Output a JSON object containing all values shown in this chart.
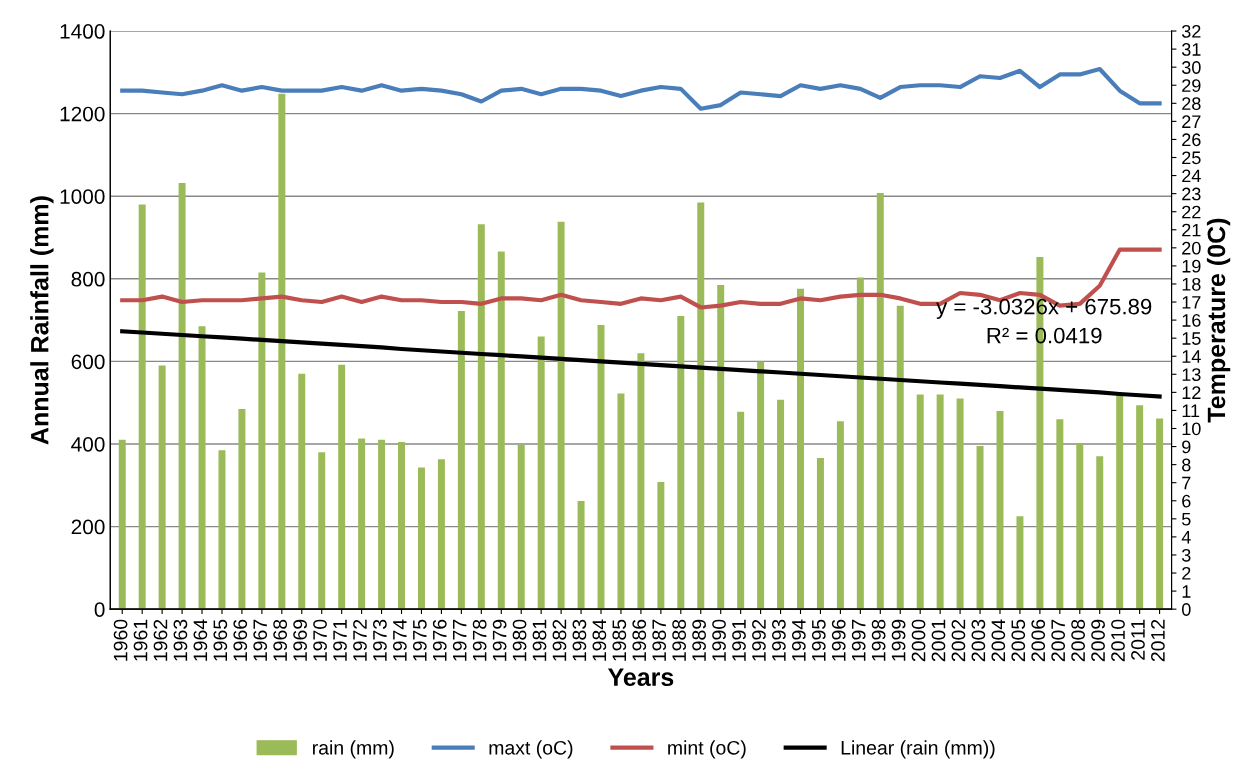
{
  "chart_data": {
    "type": "bar",
    "xlabel": "Years",
    "ylabel": "Annual Rainfall (mm)",
    "y2label": "Temperature (0C)",
    "categories": [
      "1960",
      "1961",
      "1962",
      "1963",
      "1964",
      "1965",
      "1966",
      "1967",
      "1968",
      "1969",
      "1970",
      "1971",
      "1972",
      "1973",
      "1974",
      "1975",
      "1976",
      "1977",
      "1978",
      "1979",
      "1980",
      "1981",
      "1982",
      "1983",
      "1984",
      "1985",
      "1986",
      "1987",
      "1988",
      "1989",
      "1990",
      "1991",
      "1992",
      "1993",
      "1994",
      "1995",
      "1996",
      "1997",
      "1998",
      "1999",
      "2000",
      "2001",
      "2002",
      "2003",
      "2004",
      "2005",
      "2006",
      "2007",
      "2008",
      "2009",
      "2010",
      "2011",
      "2012"
    ],
    "series": [
      {
        "name": "rain (mm)",
        "color": "#9bbb59",
        "values": [
          410,
          980,
          590,
          1032,
          685,
          385,
          485,
          815,
          1248,
          570,
          380,
          592,
          413,
          410,
          405,
          343,
          363,
          722,
          932,
          866,
          398,
          660,
          938,
          262,
          688,
          522,
          620,
          308,
          710,
          985,
          785,
          478,
          600,
          507,
          776,
          366,
          455,
          803,
          1008,
          735,
          520,
          520,
          510,
          395,
          480,
          225,
          853,
          460,
          402,
          370,
          520,
          494,
          462
        ]
      },
      {
        "name": "maxt (oC)",
        "type": "line",
        "axis": "y2",
        "color": "#4a7ebb",
        "values": [
          28.7,
          28.7,
          28.6,
          28.5,
          28.7,
          29.0,
          28.7,
          28.9,
          28.7,
          28.7,
          28.7,
          28.9,
          28.7,
          29.0,
          28.7,
          28.8,
          28.7,
          28.5,
          28.1,
          28.7,
          28.8,
          28.5,
          28.8,
          28.8,
          28.7,
          28.4,
          28.7,
          28.9,
          28.8,
          27.7,
          27.9,
          28.6,
          28.5,
          28.4,
          29.0,
          28.8,
          29.0,
          28.8,
          28.3,
          28.9,
          29.0,
          29.0,
          28.9,
          29.5,
          29.4,
          29.8,
          28.9,
          29.6,
          29.6,
          29.9,
          28.7,
          28.0,
          28.0
        ]
      },
      {
        "name": "mint (oC)",
        "type": "line",
        "axis": "y2",
        "color": "#c0504d",
        "values": [
          17.1,
          17.1,
          17.3,
          17.0,
          17.1,
          17.1,
          17.1,
          17.2,
          17.3,
          17.1,
          17.0,
          17.3,
          17.0,
          17.3,
          17.1,
          17.1,
          17.0,
          17.0,
          16.9,
          17.2,
          17.2,
          17.1,
          17.4,
          17.1,
          17.0,
          16.9,
          17.2,
          17.1,
          17.3,
          16.7,
          16.8,
          17.0,
          16.9,
          16.9,
          17.2,
          17.1,
          17.3,
          17.4,
          17.4,
          17.2,
          16.9,
          16.9,
          17.5,
          17.4,
          17.1,
          17.5,
          17.4,
          16.8,
          16.9,
          17.9,
          19.9,
          19.9,
          19.9
        ]
      },
      {
        "name": "Linear (rain (mm))",
        "type": "line",
        "color": "#000000",
        "values": [
          673,
          670,
          667,
          664,
          661,
          658,
          655,
          652,
          649,
          646,
          643,
          640,
          637,
          634,
          630,
          627,
          624,
          621,
          618,
          615,
          612,
          609,
          606,
          603,
          600,
          597,
          594,
          591,
          588,
          585,
          582,
          579,
          576,
          573,
          570,
          567,
          564,
          561,
          558,
          555,
          552,
          549,
          546,
          543,
          540,
          537,
          534,
          531,
          528,
          525,
          521,
          518,
          515
        ]
      }
    ],
    "ylim": [
      0,
      1400
    ],
    "yticks": [
      0,
      200,
      400,
      600,
      800,
      1000,
      1200,
      1400
    ],
    "y2lim": [
      0,
      32
    ],
    "y2ticks": [
      0,
      1,
      2,
      3,
      4,
      5,
      6,
      7,
      8,
      9,
      10,
      11,
      12,
      13,
      14,
      15,
      16,
      17,
      18,
      19,
      20,
      21,
      22,
      23,
      24,
      25,
      26,
      27,
      28,
      29,
      30,
      31,
      32
    ],
    "annotations": [
      "y = -3.0326x + 675.89",
      "R² = 0.0419"
    ],
    "grid": "y",
    "legend": "bottom",
    "line_style": "solid",
    "marker": "none"
  }
}
